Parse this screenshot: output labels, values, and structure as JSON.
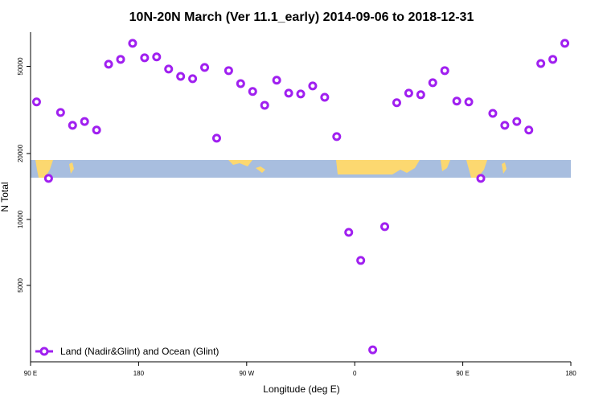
{
  "chart_data": {
    "type": "scatter",
    "title": "10N-20N March (Ver 11.1_early)   2014-09-06 to 2018-12-31",
    "xlabel": "Longitude (deg E)",
    "ylabel": "N Total",
    "x": [
      -265,
      -255,
      -245,
      -235,
      -225,
      -215,
      -205,
      -195,
      -185,
      -175,
      -165,
      -155,
      -145,
      -135,
      -125,
      -115,
      -105,
      -95,
      -85,
      -75,
      -65,
      -55,
      -45,
      -35,
      -25,
      -15,
      -5,
      5,
      15,
      25,
      35,
      45,
      55,
      65,
      75,
      85,
      95,
      105,
      115,
      125,
      135,
      145,
      155,
      165,
      175
    ],
    "series": [
      {
        "name": "Land (Nadir&Glint) and Ocean (Glint)",
        "color": "#a020f0",
        "values": [
          34400,
          15400,
          30800,
          26900,
          28000,
          25600,
          51100,
          53800,
          63700,
          54700,
          55200,
          48600,
          45000,
          43900,
          49400,
          23500,
          47800,
          41700,
          38400,
          33200,
          43200,
          37700,
          37400,
          40700,
          36100,
          23900,
          8730,
          6500,
          2540,
          9270,
          34100,
          37700,
          37100,
          42100,
          47800,
          34700,
          34400,
          15400,
          30500,
          26900,
          28000,
          25600,
          51500,
          53800,
          63700
        ]
      }
    ],
    "xlim": [
      -270,
      180
    ],
    "xticks": [
      {
        "value": -270,
        "label": "90 E"
      },
      {
        "value": -180,
        "label": "180"
      },
      {
        "value": -90,
        "label": "90 W"
      },
      0,
      {
        "value": 90,
        "label": "90 E"
      },
      180
    ],
    "ylim": [
      2240,
      71600
    ],
    "yticks": [
      5000,
      10000,
      20000,
      50000
    ],
    "log_y": true,
    "legend": "bottom-left"
  }
}
